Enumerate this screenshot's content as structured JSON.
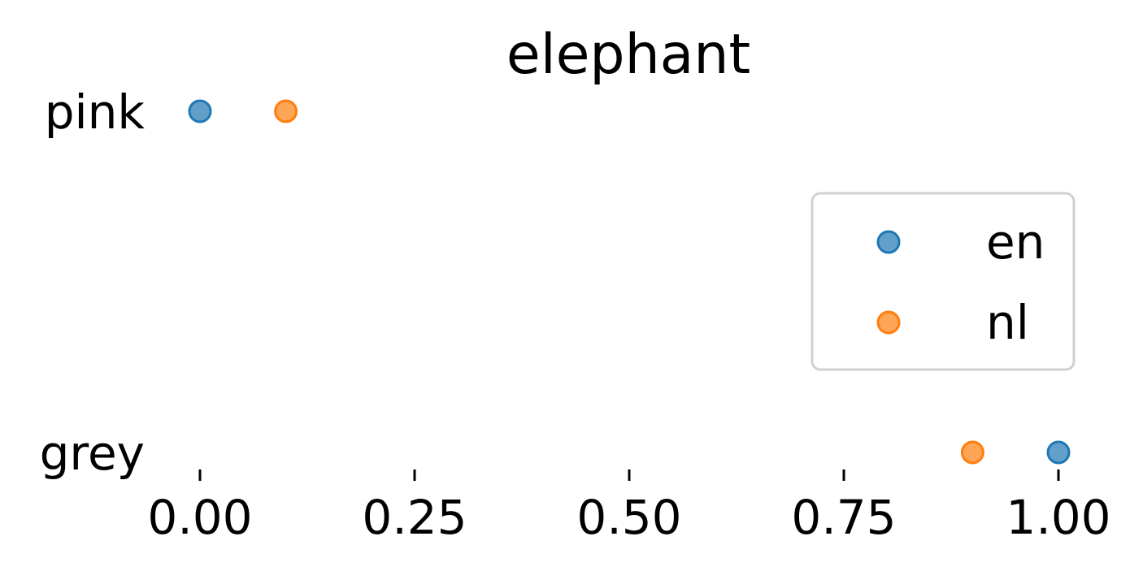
{
  "chart_data": {
    "type": "scatter",
    "title": "elephant",
    "xlabel": "",
    "ylabel": "",
    "categories": [
      "pink",
      "grey"
    ],
    "xlim": [
      0,
      1
    ],
    "xticks": [
      "0.00",
      "0.25",
      "0.50",
      "0.75",
      "1.00"
    ],
    "grid": false,
    "legend_position": "right",
    "series": [
      {
        "name": "en",
        "color": "#1f77b4",
        "values": [
          0.0,
          1.0
        ]
      },
      {
        "name": "nl",
        "color": "#ff7f0e",
        "values": [
          0.1,
          0.9
        ]
      }
    ]
  }
}
